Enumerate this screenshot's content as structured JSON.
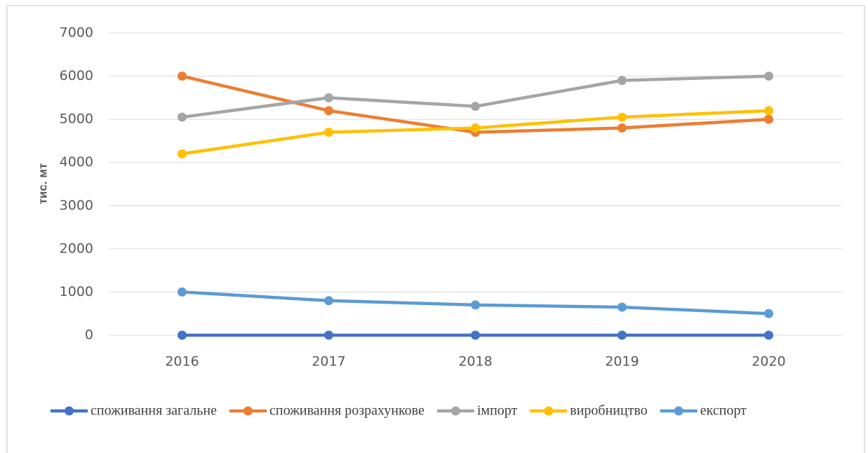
{
  "chart_data": {
    "type": "line",
    "y_label": "тис. мт",
    "categories": [
      "2016",
      "2017",
      "2018",
      "2019",
      "2020"
    ],
    "series": [
      {
        "name": "споживання загальне",
        "color": "#4472c4",
        "values": [
          0,
          0,
          0,
          0,
          0
        ]
      },
      {
        "name": "споживання розрахункове",
        "color": "#ed7d31",
        "values": [
          6000,
          5200,
          4700,
          4800,
          5000
        ]
      },
      {
        "name": "імпорт",
        "color": "#a5a5a5",
        "values": [
          5050,
          5500,
          5300,
          5900,
          6000
        ]
      },
      {
        "name": "виробництво",
        "color": "#ffc000",
        "values": [
          4200,
          4700,
          4800,
          5050,
          5200
        ]
      },
      {
        "name": "експорт",
        "color": "#5b9bd5",
        "values": [
          1000,
          800,
          700,
          650,
          500
        ]
      }
    ],
    "ylim": [
      0,
      7000
    ],
    "yticks": [
      0,
      1000,
      2000,
      3000,
      4000,
      5000,
      6000,
      7000
    ],
    "grid": true,
    "legend": "bottom"
  }
}
